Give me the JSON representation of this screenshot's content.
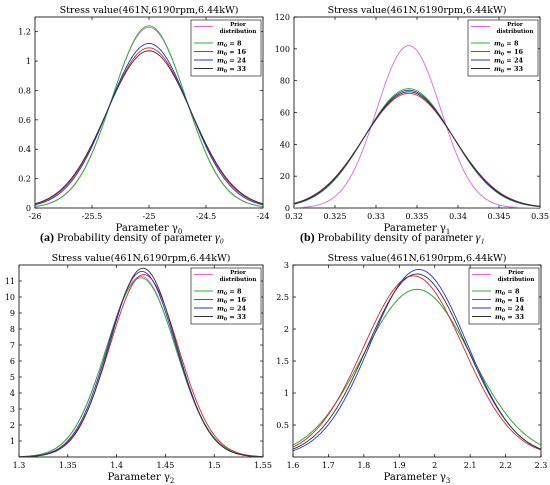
{
  "colors": {
    "prior": "#e066e0",
    "m8": "#22bb22",
    "m16": "#dd2233",
    "m24": "#2233cc",
    "m33": "#333333"
  },
  "legend_prior_line1": "Prior",
  "legend_prior_line2": "distribution",
  "legend_m_prefix": "m",
  "legend_m_sub": "0",
  "captions": [
    {
      "tag": "(a)",
      "text": "Probability density of parameter",
      "symbol": "γ₀"
    },
    {
      "tag": "(b)",
      "text": "Probability density of parameter",
      "symbol": "γ₁"
    }
  ],
  "chart_data": [
    {
      "type": "line",
      "title": "Stress value(461N,6190rpm,6.44kW)",
      "xlabel": "Parameter γ",
      "xlabel_sub": "0",
      "xlim": [
        -26,
        -24
      ],
      "ylim": [
        0,
        1.3
      ],
      "xticks": [
        -26,
        -25.5,
        -25,
        -24.5,
        -24
      ],
      "xtick_labels": [
        "-26",
        "-25.5",
        "-25",
        "-24.5",
        "-24"
      ],
      "yticks": [
        0,
        0.2,
        0.4,
        0.6,
        0.8,
        1,
        1.2
      ],
      "ytick_labels": [
        "0",
        "0.2",
        "0.4",
        "0.6",
        "0.8",
        "1",
        "1.2"
      ],
      "series": [
        {
          "name": "Prior distribution",
          "color_key": "prior",
          "mean": -25.0,
          "peak": 1.23
        },
        {
          "name": "m0 = 8",
          "label_value": "8",
          "color_key": "m8",
          "mean": -25.0,
          "peak": 1.24
        },
        {
          "name": "m0 = 16",
          "label_value": "16",
          "color_key": "m16",
          "mean": -25.0,
          "peak": 1.09
        },
        {
          "name": "m0 = 24",
          "label_value": "24",
          "color_key": "m24",
          "mean": -25.0,
          "peak": 1.12
        },
        {
          "name": "m0 = 33",
          "label_value": "33",
          "color_key": "m33",
          "mean": -25.0,
          "peak": 1.07
        }
      ]
    },
    {
      "type": "line",
      "title": "Stress value(461N,6190rpm,6.44kW)",
      "xlabel": "Parameter γ",
      "xlabel_sub": "1",
      "xlim": [
        0.32,
        0.35
      ],
      "ylim": [
        0,
        120
      ],
      "xticks": [
        0.32,
        0.325,
        0.33,
        0.335,
        0.34,
        0.345,
        0.35
      ],
      "xtick_labels": [
        "0.32",
        "0.325",
        "0.33",
        "0.335",
        "0.34",
        "0.345",
        "0.35"
      ],
      "yticks": [
        0,
        20,
        40,
        60,
        80,
        100,
        120
      ],
      "ytick_labels": [
        "0",
        "20",
        "40",
        "60",
        "80",
        "100",
        "120"
      ],
      "series": [
        {
          "name": "Prior distribution",
          "color_key": "prior",
          "mean": 0.334,
          "peak": 102
        },
        {
          "name": "m0 = 8",
          "label_value": "8",
          "color_key": "m8",
          "mean": 0.334,
          "peak": 75
        },
        {
          "name": "m0 = 16",
          "label_value": "16",
          "color_key": "m16",
          "mean": 0.334,
          "peak": 72
        },
        {
          "name": "m0 = 24",
          "label_value": "24",
          "color_key": "m24",
          "mean": 0.334,
          "peak": 74
        },
        {
          "name": "m0 = 33",
          "label_value": "33",
          "color_key": "m33",
          "mean": 0.334,
          "peak": 73
        }
      ]
    },
    {
      "type": "line",
      "title": "Stress value(461N,6190rpm,6.44kW)",
      "xlabel": "Parameter γ",
      "xlabel_sub": "2",
      "xlim": [
        1.3,
        1.55
      ],
      "ylim": [
        0,
        12
      ],
      "xticks": [
        1.3,
        1.35,
        1.4,
        1.45,
        1.5,
        1.55
      ],
      "xtick_labels": [
        "1.3",
        "1.35",
        "1.4",
        "1.45",
        "1.5",
        "1.55"
      ],
      "yticks": [
        1,
        2,
        3,
        4,
        5,
        6,
        7,
        8,
        9,
        10,
        11
      ],
      "ytick_labels": [
        "1",
        "2",
        "3",
        "4",
        "5",
        "6",
        "7",
        "8",
        "9",
        "10",
        "11"
      ],
      "series": [
        {
          "name": "Prior distribution",
          "color_key": "prior",
          "mean": 1.425,
          "peak": 11.3
        },
        {
          "name": "m0 = 8",
          "label_value": "8",
          "color_key": "m8",
          "mean": 1.425,
          "peak": 11.2
        },
        {
          "name": "m0 = 16",
          "label_value": "16",
          "color_key": "m16",
          "mean": 1.428,
          "peak": 11.4
        },
        {
          "name": "m0 = 24",
          "label_value": "24",
          "color_key": "m24",
          "mean": 1.426,
          "peak": 11.6
        },
        {
          "name": "m0 = 33",
          "label_value": "33",
          "color_key": "m33",
          "mean": 1.427,
          "peak": 11.8
        }
      ]
    },
    {
      "type": "line",
      "title": "Stress value(461N,6190rpm,6.44kW)",
      "xlabel": "Parameter γ",
      "xlabel_sub": "3",
      "xlim": [
        1.6,
        2.3
      ],
      "ylim": [
        0,
        3
      ],
      "xticks": [
        1.6,
        1.7,
        1.8,
        1.9,
        2,
        2.1,
        2.2,
        2.3
      ],
      "xtick_labels": [
        "1.6",
        "1.7",
        "1.8",
        "1.9",
        "2",
        "2.1",
        "2.2",
        "2.3"
      ],
      "yticks": [
        0.5,
        1,
        1.5,
        2,
        2.5,
        3
      ],
      "ytick_labels": [
        "0.5",
        "1",
        "1.5",
        "2",
        "2.5",
        "3"
      ],
      "series": [
        {
          "name": "Prior distribution",
          "color_key": "prior",
          "mean": 1.95,
          "peak": 2.62
        },
        {
          "name": "m0 = 8",
          "label_value": "8",
          "color_key": "m8",
          "mean": 1.95,
          "peak": 2.62
        },
        {
          "name": "m0 = 16",
          "label_value": "16",
          "color_key": "m16",
          "mean": 1.94,
          "peak": 2.83
        },
        {
          "name": "m0 = 24",
          "label_value": "24",
          "color_key": "m24",
          "mean": 1.955,
          "peak": 2.93
        },
        {
          "name": "m0 = 33",
          "label_value": "33",
          "color_key": "m33",
          "mean": 1.95,
          "peak": 2.86
        }
      ]
    }
  ]
}
